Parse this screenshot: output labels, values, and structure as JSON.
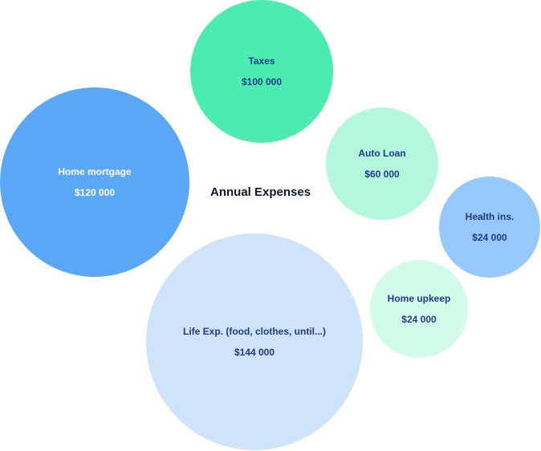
{
  "chart_data": {
    "type": "bubble",
    "title": "Annual Expenses",
    "series": [
      {
        "name": "Life Exp. (food, clothes, until...)",
        "value": 144000,
        "label": "$144 000",
        "color": "#cfe4fb",
        "text_color": "#1e3a8a"
      },
      {
        "name": "Home mortgage",
        "value": 120000,
        "label": "$120 000",
        "color": "#5aa8f5",
        "text_color": "#ffffff"
      },
      {
        "name": "Taxes",
        "value": 100000,
        "label": "$100 000",
        "color": "#4cecb1",
        "text_color": "#1e3a8a"
      },
      {
        "name": "Auto Loan",
        "value": 60000,
        "label": "$60 000",
        "color": "#b3f8dd",
        "text_color": "#1e3a8a"
      },
      {
        "name": "Health ins.",
        "value": 24000,
        "label": "$24 000",
        "color": "#96c8fb",
        "text_color": "#1e3a8a"
      },
      {
        "name": "Home upkeep",
        "value": 24000,
        "label": "$24 000",
        "color": "#d3fbea",
        "text_color": "#1e3a8a"
      }
    ]
  }
}
